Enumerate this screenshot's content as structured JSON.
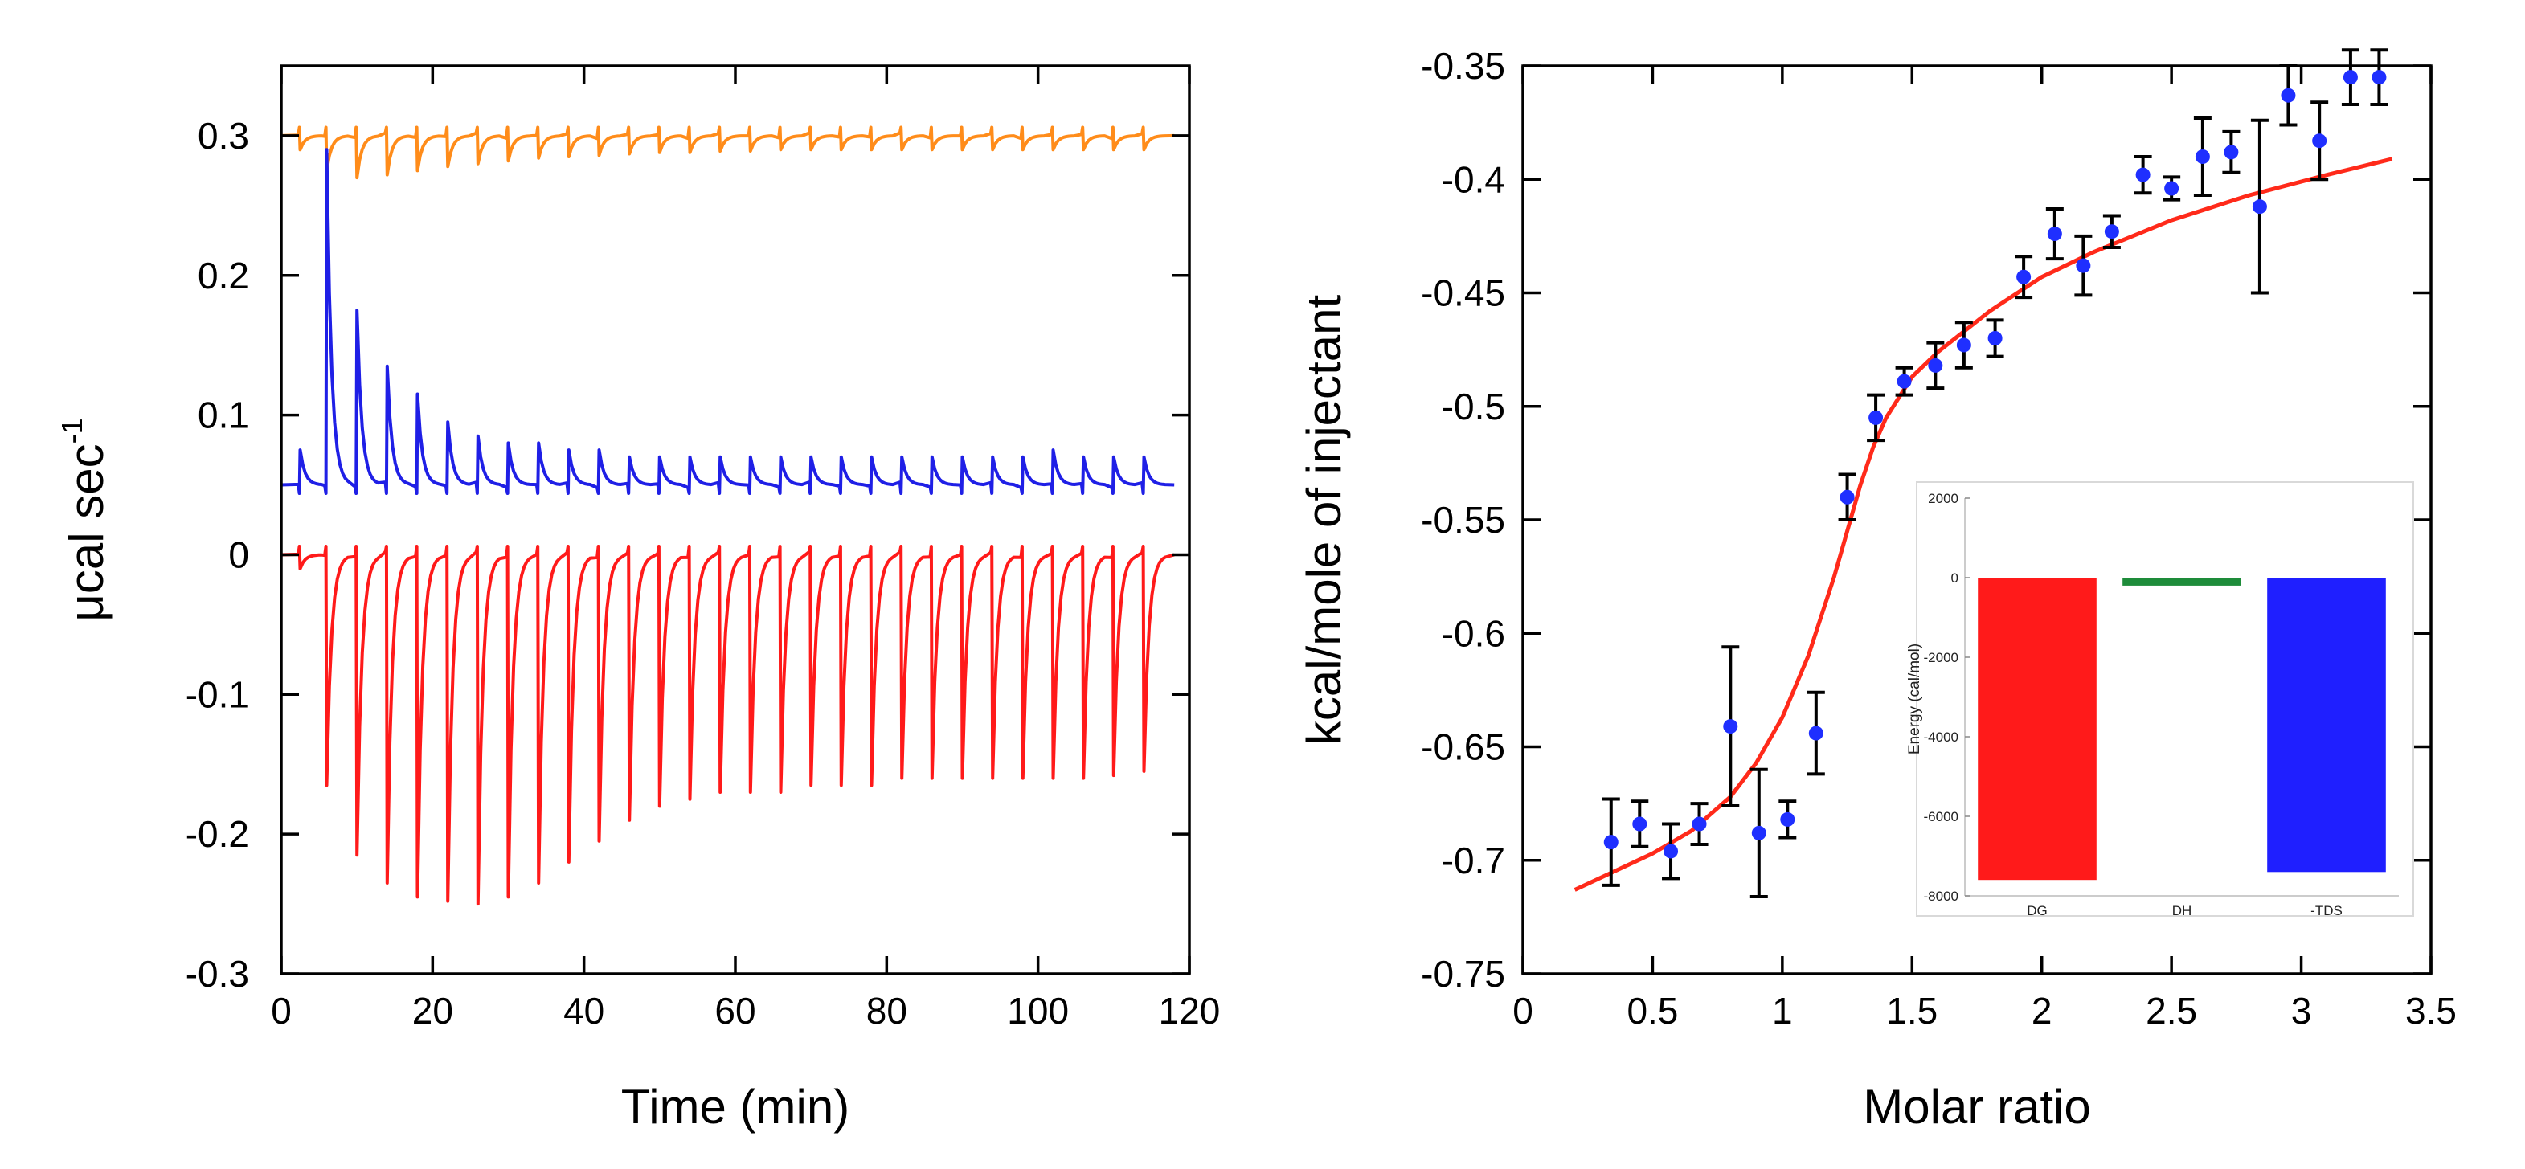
{
  "chart_data": [
    {
      "id": "raw-thermogram",
      "type": "line",
      "xlabel": "Time (min)",
      "ylabel": "μcal sec",
      "ylabel_superscript": "-1",
      "xlim": [
        0,
        120
      ],
      "ylim": [
        -0.3,
        0.35
      ],
      "xticks": [
        0,
        20,
        40,
        60,
        80,
        100,
        120
      ],
      "xtick_labels": [
        "0",
        "20",
        "40",
        "60",
        "80",
        "100",
        "120"
      ],
      "yticks": [
        -0.3,
        -0.2,
        -0.1,
        0,
        0.1,
        0.2,
        0.3
      ],
      "ytick_labels": [
        "-0.3",
        "-0.2",
        "-0.1",
        "0",
        "0.1",
        "0.2",
        "0.3"
      ],
      "injection_times": [
        2.5,
        6,
        10,
        14,
        18,
        22,
        26,
        30,
        34,
        38,
        42,
        46,
        50,
        54,
        58,
        62,
        66,
        70,
        74,
        78,
        82,
        86,
        90,
        94,
        98,
        102,
        106,
        110,
        114
      ],
      "series": [
        {
          "name": "orange",
          "color": "#ff8c1a",
          "baseline": 0.3,
          "t_start": 0,
          "t_end": 118,
          "peaks": [
            -0.01,
            -0.025,
            -0.03,
            -0.028,
            -0.025,
            -0.022,
            -0.02,
            -0.018,
            -0.016,
            -0.015,
            -0.014,
            -0.013,
            -0.012,
            -0.012,
            -0.011,
            -0.011,
            -0.01,
            -0.01,
            -0.01,
            -0.01,
            -0.01,
            -0.01,
            -0.01,
            -0.01,
            -0.01,
            -0.01,
            -0.01,
            -0.01,
            -0.01
          ]
        },
        {
          "name": "blue",
          "color": "#1f1fe6",
          "baseline": 0.05,
          "t_start": 0,
          "t_end": 118,
          "peaks": [
            0.025,
            0.24,
            0.125,
            0.085,
            0.065,
            0.045,
            0.035,
            0.03,
            0.03,
            0.025,
            0.025,
            0.02,
            0.02,
            0.02,
            0.02,
            0.02,
            0.02,
            0.02,
            0.02,
            0.02,
            0.02,
            0.02,
            0.02,
            0.02,
            0.02,
            0.025,
            0.02,
            0.02,
            0.02
          ]
        },
        {
          "name": "red",
          "color": "#ff1a1a",
          "baseline": 0,
          "t_start": 0,
          "t_end": 118,
          "peaks": [
            -0.01,
            -0.165,
            -0.215,
            -0.235,
            -0.245,
            -0.248,
            -0.25,
            -0.245,
            -0.235,
            -0.22,
            -0.205,
            -0.19,
            -0.18,
            -0.175,
            -0.17,
            -0.17,
            -0.17,
            -0.165,
            -0.165,
            -0.165,
            -0.16,
            -0.16,
            -0.16,
            -0.16,
            -0.16,
            -0.16,
            -0.16,
            -0.158,
            -0.155
          ]
        }
      ]
    },
    {
      "id": "binding-isotherm",
      "type": "scatter",
      "xlabel": "Molar ratio",
      "ylabel": "kcal/mole of injectant",
      "xlim": [
        0,
        3.5
      ],
      "ylim": [
        -0.75,
        -0.35
      ],
      "xticks": [
        0,
        0.5,
        1,
        1.5,
        2,
        2.5,
        3,
        3.5
      ],
      "xtick_labels": [
        "0",
        "0.5",
        "1",
        "1.5",
        "2",
        "2.5",
        "3",
        "3.5"
      ],
      "yticks": [
        -0.75,
        -0.7,
        -0.65,
        -0.6,
        -0.55,
        -0.5,
        -0.45,
        -0.4,
        -0.35
      ],
      "ytick_labels": [
        "-0.75",
        "-0.7",
        "-0.65",
        "-0.6",
        "-0.55",
        "-0.5",
        "-0.45",
        "-0.4",
        "-0.35"
      ],
      "points": {
        "name": "data",
        "color": "#1f2fff",
        "error_color": "#000000",
        "x": [
          0.34,
          0.45,
          0.57,
          0.68,
          0.8,
          0.91,
          1.02,
          1.13,
          1.25,
          1.36,
          1.47,
          1.59,
          1.7,
          1.82,
          1.93,
          2.05,
          2.16,
          2.27,
          2.39,
          2.5,
          2.62,
          2.73,
          2.84,
          2.95,
          3.07,
          3.19,
          3.3
        ],
        "y": [
          -0.692,
          -0.684,
          -0.696,
          -0.684,
          -0.641,
          -0.688,
          -0.682,
          -0.644,
          -0.54,
          -0.505,
          -0.489,
          -0.482,
          -0.473,
          -0.47,
          -0.443,
          -0.424,
          -0.438,
          -0.423,
          -0.398,
          -0.404,
          -0.39,
          -0.388,
          -0.412,
          -0.363,
          -0.383,
          -0.355,
          -0.355
        ],
        "err": [
          0.019,
          0.01,
          0.012,
          0.009,
          0.035,
          0.028,
          0.008,
          0.018,
          0.01,
          0.01,
          0.006,
          0.01,
          0.01,
          0.008,
          0.009,
          0.011,
          0.013,
          0.007,
          0.008,
          0.005,
          0.017,
          0.009,
          0.038,
          0.013,
          0.017,
          0.012,
          0.012
        ]
      },
      "fit": {
        "name": "fit",
        "color": "#ff2a1a",
        "x": [
          0.2,
          0.35,
          0.5,
          0.65,
          0.8,
          0.9,
          1.0,
          1.1,
          1.2,
          1.25,
          1.3,
          1.35,
          1.4,
          1.5,
          1.6,
          1.8,
          2.0,
          2.2,
          2.5,
          2.8,
          3.1,
          3.35
        ],
        "y": [
          -0.713,
          -0.705,
          -0.697,
          -0.687,
          -0.672,
          -0.657,
          -0.637,
          -0.61,
          -0.575,
          -0.555,
          -0.535,
          -0.518,
          -0.505,
          -0.487,
          -0.476,
          -0.458,
          -0.443,
          -0.432,
          -0.418,
          -0.407,
          -0.398,
          -0.391
        ]
      },
      "inset": {
        "type": "bar",
        "ylabel": "Energy (cal/mol)",
        "ylim": [
          -8000,
          2000
        ],
        "yticks": [
          -8000,
          -6000,
          -4000,
          -2000,
          0,
          2000
        ],
        "ytick_labels": [
          "-8000",
          "-6000",
          "-4000",
          "-2000",
          "0",
          "2000"
        ],
        "categories": [
          "DG",
          "DH",
          "-TDS"
        ],
        "values": [
          -7600,
          -200,
          -7400
        ],
        "colors": [
          "#ff1a1a",
          "#1e8c3a",
          "#1f1fff"
        ]
      }
    }
  ]
}
